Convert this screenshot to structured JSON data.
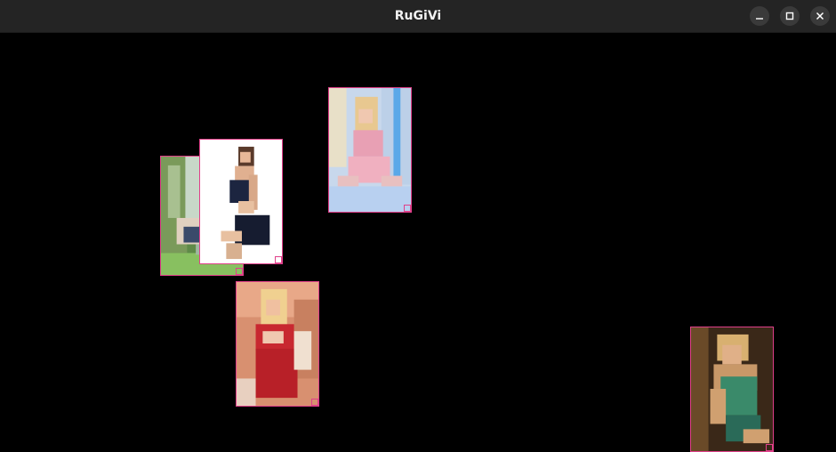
{
  "window": {
    "title": "RuGiVi"
  },
  "window_controls": {
    "minimize_icon": "minimize-icon",
    "maximize_icon": "maximize-icon",
    "close_icon": "close-icon"
  },
  "canvas": {
    "background": "#000000",
    "frame_color": "#e0408a",
    "images": [
      {
        "name": "garden-photo-thumbnail",
        "palette": [
          "#6a9a4a",
          "#c9d9c0",
          "#3a4a6a"
        ]
      },
      {
        "name": "navy-outfit-photo-thumbnail",
        "palette": [
          "#ffffff",
          "#1c2540",
          "#e0b090"
        ]
      },
      {
        "name": "pink-outfit-photo-thumbnail",
        "palette": [
          "#bcd0e8",
          "#e8a0b4",
          "#e8c890"
        ]
      },
      {
        "name": "red-dress-photo-thumbnail",
        "palette": [
          "#d89880",
          "#c02030",
          "#f0e0d0"
        ]
      },
      {
        "name": "green-top-photo-thumbnail",
        "palette": [
          "#3a2a18",
          "#3a8a6a",
          "#d0a070"
        ]
      }
    ]
  }
}
